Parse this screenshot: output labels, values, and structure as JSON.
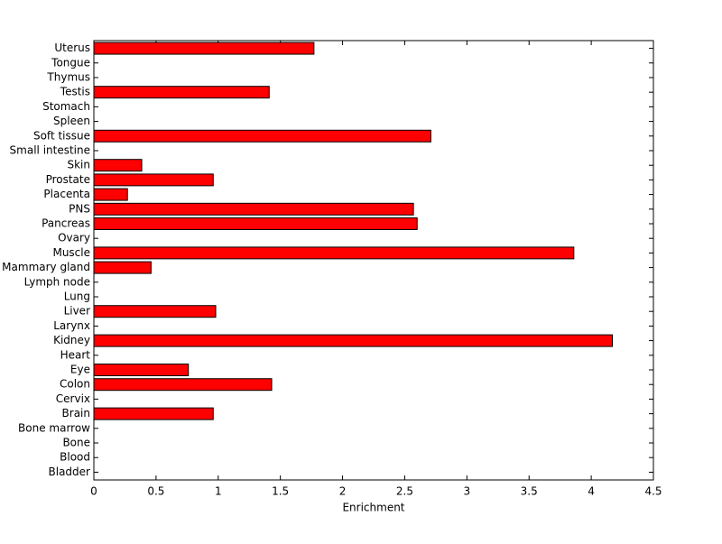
{
  "chart_data": {
    "type": "barh",
    "categories": [
      "Uterus",
      "Tongue",
      "Thymus",
      "Testis",
      "Stomach",
      "Spleen",
      "Soft tissue",
      "Small intestine",
      "Skin",
      "Prostate",
      "Placenta",
      "PNS",
      "Pancreas",
      "Ovary",
      "Muscle",
      "Mammary gland",
      "Lymph node",
      "Lung",
      "Liver",
      "Larynx",
      "Kidney",
      "Heart",
      "Eye",
      "Colon",
      "Cervix",
      "Brain",
      "Bone marrow",
      "Bone",
      "Blood",
      "Bladder"
    ],
    "values": [
      1.77,
      0,
      0,
      1.41,
      0,
      0,
      2.71,
      0,
      0.385,
      0.96,
      0.27,
      2.57,
      2.6,
      0,
      3.86,
      0.46,
      0,
      0,
      0.98,
      0,
      4.17,
      0,
      0.76,
      1.43,
      0,
      0.96,
      0,
      0,
      0,
      0
    ],
    "color": "#ff0000",
    "x_label": "Enrichment",
    "xlim": [
      0,
      4.5
    ],
    "xticks": [
      0,
      0.5,
      1,
      1.5,
      2,
      2.5,
      3,
      3.5,
      4,
      4.5
    ],
    "grid": false
  }
}
